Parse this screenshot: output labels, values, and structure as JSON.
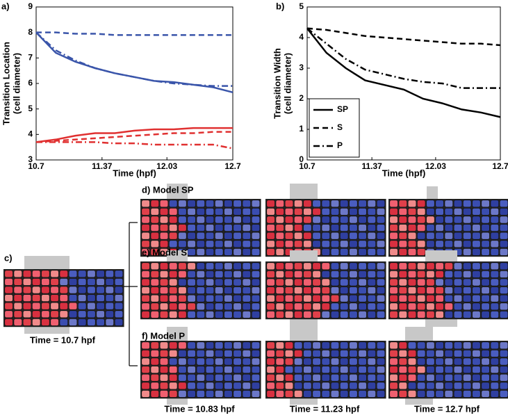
{
  "chart_data": [
    {
      "type": "line",
      "panel": "a)",
      "ylabel": [
        "Transition Location",
        "(cell diameter)"
      ],
      "xlabel": "Time (hpf)",
      "x": [
        10.7,
        10.9,
        11.1,
        11.3,
        11.5,
        11.7,
        11.9,
        12.1,
        12.3,
        12.5,
        12.7
      ],
      "xlim": [
        10.7,
        12.7
      ],
      "xticks": [
        10.7,
        11.37,
        12.03,
        12.7
      ],
      "ylim": [
        3,
        9
      ],
      "yticks": [
        3,
        4,
        5,
        6,
        7,
        8,
        9
      ],
      "series": [
        {
          "color": "#3a55aa",
          "style": "solid",
          "values": [
            8.0,
            7.2,
            6.85,
            6.6,
            6.4,
            6.25,
            6.1,
            6.05,
            5.95,
            5.85,
            5.65
          ]
        },
        {
          "color": "#3a55aa",
          "style": "dashed",
          "values": [
            8.0,
            8.0,
            7.95,
            7.95,
            7.9,
            7.9,
            7.9,
            7.9,
            7.9,
            7.9,
            7.9
          ]
        },
        {
          "color": "#3a55aa",
          "style": "dashdot",
          "values": [
            8.0,
            7.3,
            6.9,
            6.6,
            6.4,
            6.25,
            6.1,
            6.0,
            5.95,
            5.9,
            5.9
          ]
        },
        {
          "color": "#e03030",
          "style": "solid",
          "values": [
            3.7,
            3.8,
            3.95,
            4.05,
            4.05,
            4.15,
            4.2,
            4.2,
            4.25,
            4.25,
            4.25
          ]
        },
        {
          "color": "#e03030",
          "style": "dashed",
          "values": [
            3.7,
            3.75,
            3.8,
            3.85,
            3.9,
            3.95,
            4.0,
            4.05,
            4.05,
            4.1,
            4.1
          ]
        },
        {
          "color": "#e03030",
          "style": "dashdot",
          "values": [
            3.7,
            3.7,
            3.7,
            3.7,
            3.65,
            3.65,
            3.6,
            3.6,
            3.6,
            3.6,
            3.45
          ]
        }
      ]
    },
    {
      "type": "line",
      "panel": "b)",
      "ylabel": [
        "Transition Width",
        "(cell diameter)"
      ],
      "xlabel": "Time (hpf)",
      "x": [
        10.7,
        10.9,
        11.1,
        11.3,
        11.5,
        11.7,
        11.9,
        12.1,
        12.3,
        12.5,
        12.7
      ],
      "xlim": [
        10.7,
        12.7
      ],
      "xticks": [
        10.7,
        11.37,
        12.03,
        12.7
      ],
      "ylim": [
        0,
        5
      ],
      "yticks": [
        0,
        1,
        2,
        3,
        4,
        5
      ],
      "legend": "lower left",
      "series": [
        {
          "name": "SP",
          "color": "#000000",
          "style": "solid",
          "values": [
            4.3,
            3.5,
            3.0,
            2.6,
            2.45,
            2.3,
            2.0,
            1.85,
            1.65,
            1.55,
            1.4
          ]
        },
        {
          "name": "S",
          "color": "#000000",
          "style": "dashed",
          "values": [
            4.3,
            4.25,
            4.15,
            4.05,
            4.0,
            3.95,
            3.9,
            3.85,
            3.8,
            3.8,
            3.75
          ]
        },
        {
          "name": "P",
          "color": "#000000",
          "style": "dashdot",
          "values": [
            4.3,
            3.8,
            3.3,
            2.95,
            2.8,
            2.65,
            2.55,
            2.5,
            2.35,
            2.35,
            2.35
          ]
        }
      ]
    }
  ],
  "panels": {
    "c": "c)",
    "d": "d) Model SP",
    "e": "e) Model S",
    "f": "f) Model P"
  },
  "times": [
    "Time = 10.7 hpf",
    "Time = 10.83 hpf",
    "Time = 11.23 hpf",
    "Time = 12.7 hpf"
  ]
}
